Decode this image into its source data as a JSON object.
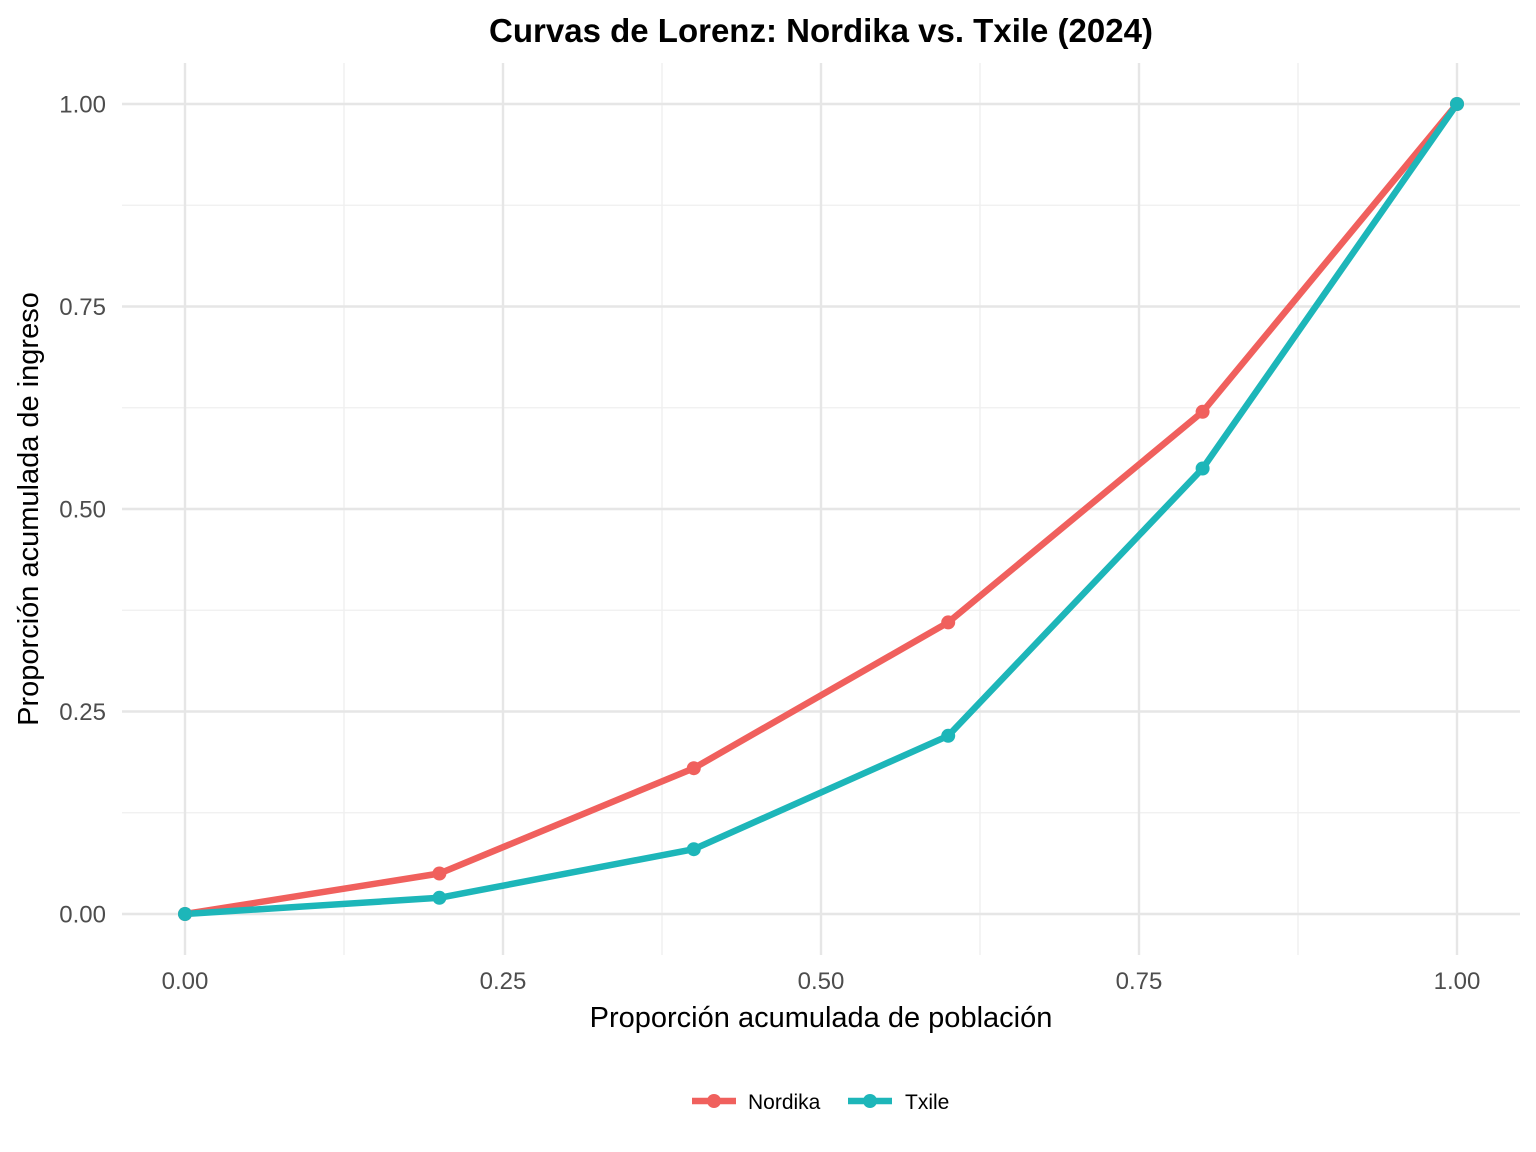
{
  "chart_data": {
    "type": "line",
    "title": "Curvas de Lorenz: Nordika vs. Txile (2024)",
    "xlabel": "Proporción acumulada de población",
    "ylabel": "Proporción acumulada de ingreso",
    "xlim": [
      0,
      1
    ],
    "ylim": [
      0,
      1
    ],
    "x": [
      0,
      0.2,
      0.4,
      0.6,
      0.8,
      1.0
    ],
    "xticks": [
      0,
      0.25,
      0.5,
      0.75,
      1.0
    ],
    "yticks": [
      0,
      0.25,
      0.5,
      0.75,
      1.0
    ],
    "xtick_labels": [
      "0.00",
      "0.25",
      "0.50",
      "0.75",
      "1.00"
    ],
    "ytick_labels": [
      "0.00",
      "0.25",
      "0.50",
      "0.75",
      "1.00"
    ],
    "grid": true,
    "legend_position": "bottom",
    "series": [
      {
        "name": "Nordika",
        "color": "#F0605D",
        "values": [
          0,
          0.05,
          0.18,
          0.36,
          0.62,
          1.0
        ]
      },
      {
        "name": "Txile",
        "color": "#1DB6B9",
        "values": [
          0,
          0.02,
          0.08,
          0.22,
          0.55,
          1.0
        ]
      }
    ]
  }
}
